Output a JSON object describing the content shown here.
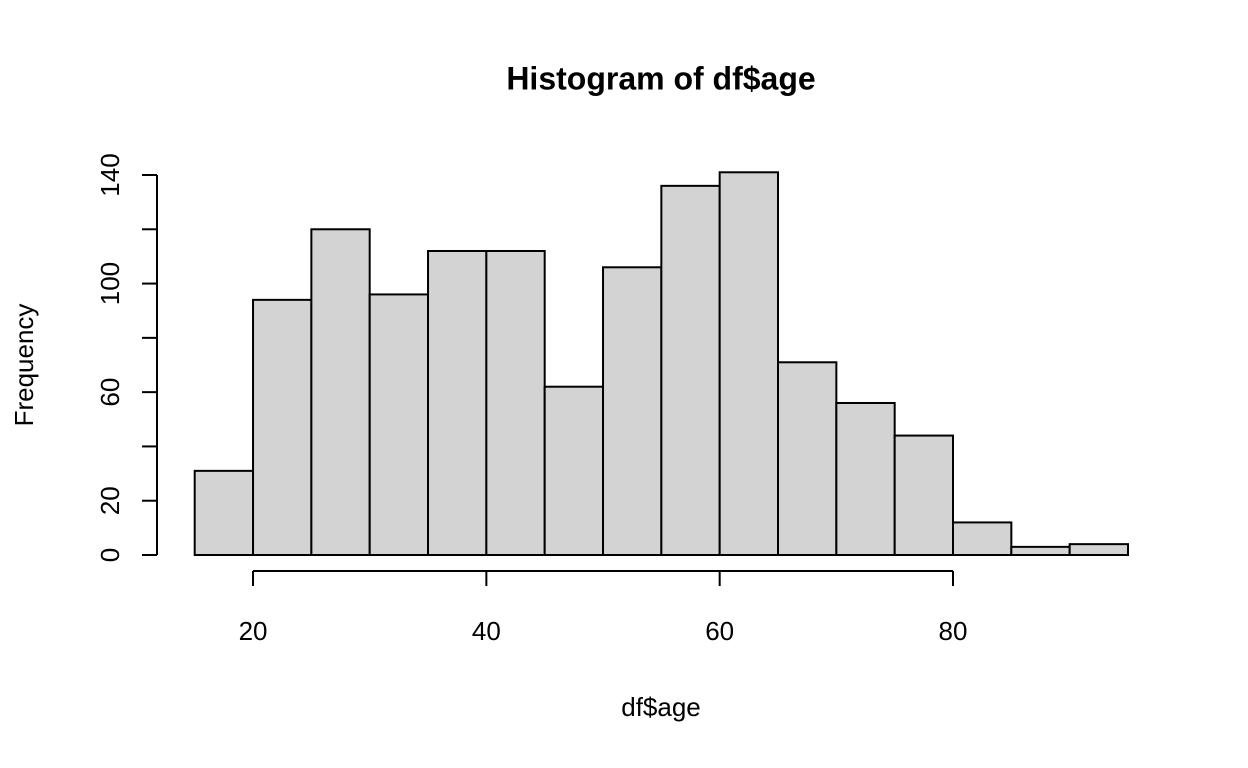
{
  "chart_data": {
    "type": "histogram",
    "title": "Histogram of df$age",
    "x_label": "df$age",
    "y_label": "Frequency",
    "bins": [
      15,
      20,
      25,
      30,
      35,
      40,
      45,
      50,
      55,
      60,
      65,
      70,
      75,
      80,
      85,
      90,
      95
    ],
    "values": [
      31,
      94,
      120,
      96,
      112,
      112,
      62,
      106,
      136,
      141,
      71,
      56,
      44,
      12,
      3,
      4
    ],
    "color": "#d3d3d3",
    "xlim": [
      15,
      95
    ],
    "xticks": [
      20,
      40,
      60,
      80
    ],
    "ylim": [
      0,
      140
    ],
    "yticks": [
      0,
      20,
      {
        "value": 40,
        "label": null
      },
      60,
      {
        "value": 80,
        "label": null
      },
      100,
      {
        "value": 120,
        "label": null
      },
      140
    ]
  }
}
